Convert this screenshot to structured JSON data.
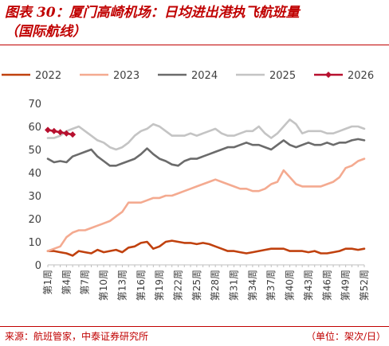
{
  "title": {
    "line1": "图表 30：厦门高崎机场：日均进出港执飞航班量",
    "line2": "（国际航线）"
  },
  "footer": {
    "source": "来源：航班管家，中泰证券研究所",
    "unit": "（单位：架次/日）"
  },
  "colors": {
    "2022": "#c0410e",
    "2023": "#f4aa90",
    "2024": "#6b6b6b",
    "2025": "#c4c4c4",
    "2026": "#b7102f",
    "axis": "#bfbfbf",
    "text": "#404040"
  },
  "chart_data": {
    "type": "line",
    "ylim": [
      0,
      70
    ],
    "yticks": [
      0,
      10,
      20,
      30,
      40,
      50,
      60,
      70
    ],
    "xlim": [
      1,
      52
    ],
    "xtick_labels": [
      "第1周",
      "第4周",
      "第7周",
      "第10周",
      "第13周",
      "第16周",
      "第19周",
      "第22周",
      "第25周",
      "第28周",
      "第31周",
      "第34周",
      "第37周",
      "第40周",
      "第43周",
      "第46周",
      "第49周",
      "第52周"
    ],
    "legend_position": "top",
    "series": [
      {
        "name": "2022",
        "color_key": "2022",
        "start_week": 1,
        "values": [
          6,
          6,
          5.5,
          5,
          4,
          6,
          5.5,
          5,
          6.5,
          5.5,
          6,
          6.5,
          5.5,
          7.5,
          8,
          9.5,
          10,
          7,
          8,
          10,
          10.5,
          10,
          9.5,
          9.5,
          9,
          9.5,
          9,
          8,
          7,
          6,
          6,
          5.5,
          5,
          5.5,
          6,
          6.5,
          7,
          7,
          7,
          6,
          6,
          6,
          5.5,
          6,
          5,
          5,
          5.5,
          6,
          7,
          7,
          6.5,
          7
        ]
      },
      {
        "name": "2023",
        "color_key": "2023",
        "start_week": 1,
        "values": [
          6,
          7,
          8,
          12,
          14,
          15,
          15,
          16,
          17,
          18,
          19,
          21,
          23,
          27,
          27,
          27,
          28,
          29,
          29,
          30,
          30,
          31,
          32,
          33,
          34,
          35,
          36,
          37,
          36,
          35,
          34,
          33,
          33,
          32,
          32,
          33,
          35,
          36,
          41,
          38,
          35,
          34,
          34,
          34,
          34,
          35,
          36,
          38,
          42,
          43,
          45,
          46
        ]
      },
      {
        "name": "2024",
        "color_key": "2024",
        "start_week": 1,
        "values": [
          46,
          44.5,
          45,
          44.5,
          47,
          48,
          49,
          50,
          47,
          45,
          43,
          43,
          44,
          45,
          46,
          48,
          50.5,
          48,
          46,
          45,
          43.5,
          43,
          45,
          46,
          46,
          47,
          48,
          49,
          50,
          51,
          51,
          52,
          53,
          52,
          52,
          51,
          50,
          52,
          54,
          52,
          51,
          52,
          53,
          52,
          52,
          53,
          52,
          53,
          53,
          54,
          54.5,
          54
        ]
      },
      {
        "name": "2025",
        "color_key": "2025",
        "start_week": 1,
        "values": [
          55,
          55,
          56,
          58,
          59,
          60,
          58,
          56,
          54,
          53,
          51,
          50,
          51,
          53,
          56,
          58,
          59,
          61,
          60,
          58,
          56,
          56,
          56,
          57,
          56,
          57,
          58,
          59,
          57,
          56,
          56,
          57,
          58,
          58,
          60,
          57,
          55,
          57,
          60,
          63,
          61,
          57,
          58,
          58,
          58,
          57,
          57,
          58,
          59,
          60,
          60,
          59
        ]
      },
      {
        "name": "2026",
        "color_key": "2026",
        "start_week": 1,
        "markers": true,
        "values": [
          58.5,
          58,
          57.5,
          57,
          56.5
        ]
      }
    ]
  }
}
